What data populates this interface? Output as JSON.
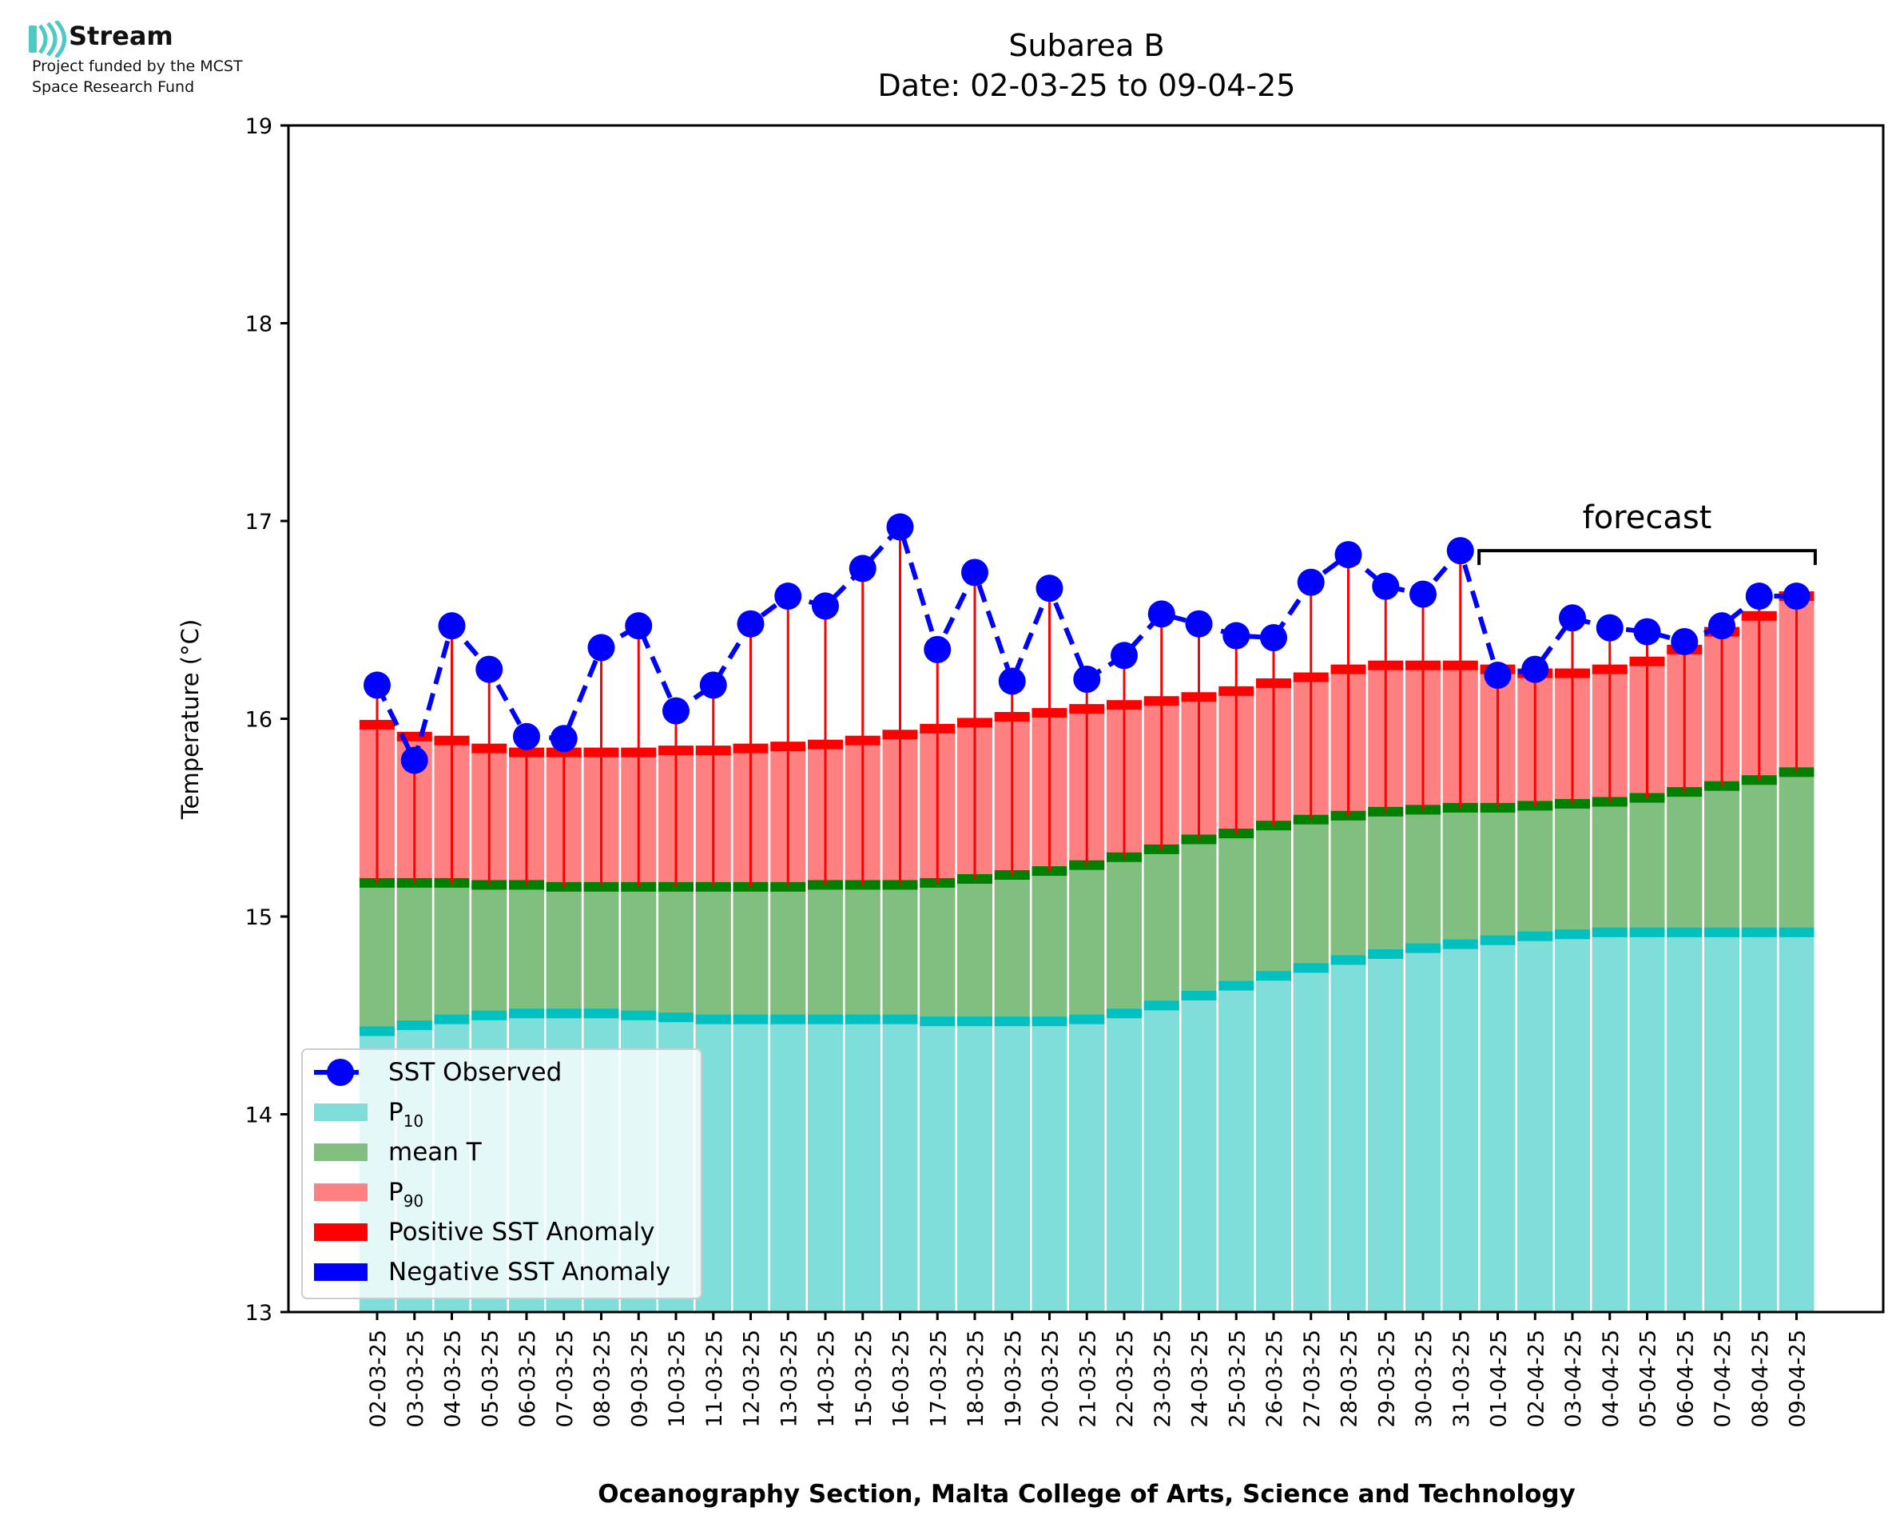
{
  "logo": {
    "name": "Stream",
    "line1": "Project funded by the MCST",
    "line2": "Space Research Fund",
    "icon": "stream-waves-icon"
  },
  "chart_data": {
    "type": "bar",
    "title": "Subarea B",
    "subtitle": "Date: 02-03-25 to 09-04-25",
    "xlabel": "Oceanography Section, Malta College of Arts, Science and Technology",
    "ylabel": "Temperature (°C)",
    "ylim": [
      13,
      19
    ],
    "yticks": [
      "13",
      "14",
      "15",
      "16",
      "17",
      "18",
      "19"
    ],
    "grid": false,
    "legend_position": "lower-left",
    "forecast_label": "forecast",
    "forecast_from": "01-04-25",
    "categories": [
      "02-03-25",
      "03-03-25",
      "04-03-25",
      "05-03-25",
      "06-03-25",
      "07-03-25",
      "08-03-25",
      "09-03-25",
      "10-03-25",
      "11-03-25",
      "12-03-25",
      "13-03-25",
      "14-03-25",
      "15-03-25",
      "16-03-25",
      "17-03-25",
      "18-03-25",
      "19-03-25",
      "20-03-25",
      "21-03-25",
      "22-03-25",
      "23-03-25",
      "24-03-25",
      "25-03-25",
      "26-03-25",
      "27-03-25",
      "28-03-25",
      "29-03-25",
      "30-03-25",
      "31-03-25",
      "01-04-25",
      "02-04-25",
      "03-04-25",
      "04-04-25",
      "05-04-25",
      "06-04-25",
      "07-04-25",
      "08-04-25",
      "09-04-25"
    ],
    "series": [
      {
        "name": "SST Observed",
        "color": "#0000ff",
        "values": [
          16.17,
          15.79,
          16.47,
          16.25,
          15.91,
          15.9,
          16.36,
          16.47,
          16.04,
          16.17,
          16.48,
          16.62,
          16.57,
          16.76,
          16.97,
          16.35,
          16.74,
          16.19,
          16.66,
          16.2,
          16.32,
          16.53,
          16.48,
          16.42,
          16.41,
          16.69,
          16.83,
          16.67,
          16.63,
          16.85,
          16.22,
          16.25,
          16.51,
          16.46,
          16.44,
          16.39,
          16.47,
          16.62,
          16.62
        ]
      },
      {
        "name": "P10",
        "color": "#80deda",
        "edge_color": "#00c0c0",
        "values": [
          14.42,
          14.45,
          14.48,
          14.5,
          14.51,
          14.51,
          14.51,
          14.5,
          14.49,
          14.48,
          14.48,
          14.48,
          14.48,
          14.48,
          14.48,
          14.47,
          14.47,
          14.47,
          14.47,
          14.48,
          14.51,
          14.55,
          14.6,
          14.65,
          14.7,
          14.74,
          14.78,
          14.81,
          14.84,
          14.86,
          14.88,
          14.9,
          14.91,
          14.92,
          14.92,
          14.92,
          14.92,
          14.92,
          14.92
        ]
      },
      {
        "name": "mean T",
        "color": "#80bf80",
        "edge_color": "#007f00",
        "values": [
          15.17,
          15.17,
          15.17,
          15.16,
          15.16,
          15.15,
          15.15,
          15.15,
          15.15,
          15.15,
          15.15,
          15.15,
          15.16,
          15.16,
          15.16,
          15.17,
          15.19,
          15.21,
          15.23,
          15.26,
          15.3,
          15.34,
          15.39,
          15.42,
          15.46,
          15.49,
          15.51,
          15.53,
          15.54,
          15.55,
          15.55,
          15.56,
          15.57,
          15.58,
          15.6,
          15.63,
          15.66,
          15.69,
          15.73
        ]
      },
      {
        "name": "P90",
        "color": "#ff8080",
        "edge_color": "#ff0000",
        "values": [
          15.97,
          15.91,
          15.89,
          15.85,
          15.83,
          15.83,
          15.83,
          15.83,
          15.84,
          15.84,
          15.85,
          15.86,
          15.87,
          15.89,
          15.92,
          15.95,
          15.98,
          16.01,
          16.03,
          16.05,
          16.07,
          16.09,
          16.11,
          16.14,
          16.18,
          16.21,
          16.25,
          16.27,
          16.27,
          16.27,
          16.25,
          16.23,
          16.23,
          16.25,
          16.29,
          16.35,
          16.44,
          16.52,
          16.62
        ]
      }
    ],
    "legend": [
      {
        "label": "SST Observed",
        "kind": "line-marker",
        "color": "#0000ff"
      },
      {
        "label": "P",
        "sub": "10",
        "kind": "patch",
        "color": "#80deda"
      },
      {
        "label": "mean T",
        "kind": "patch",
        "color": "#80bf80"
      },
      {
        "label": "P",
        "sub": "90",
        "kind": "patch",
        "color": "#ff8080"
      },
      {
        "label": "Positive SST Anomaly",
        "kind": "patch",
        "color": "#ff0000"
      },
      {
        "label": "Negative SST Anomaly",
        "kind": "patch",
        "color": "#0000ff"
      }
    ]
  }
}
